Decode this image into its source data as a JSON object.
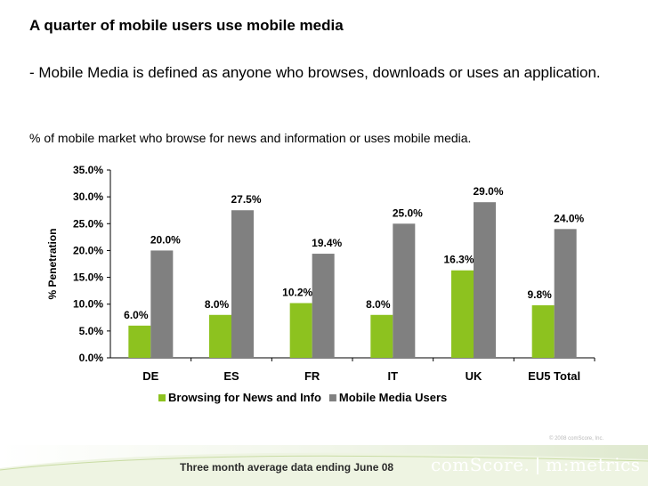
{
  "header": {
    "title": "A quarter of mobile users use mobile media",
    "subtitle": "- Mobile Media is defined as anyone who browses, downloads or uses an application.",
    "caption": "% of mobile market who browse for news and information or uses mobile media."
  },
  "chart_data": {
    "type": "bar",
    "categories": [
      "DE",
      "ES",
      "FR",
      "IT",
      "UK",
      "EU5 Total"
    ],
    "series": [
      {
        "name": "Browsing for News and Info",
        "color": "#8dc21f",
        "values": [
          6.0,
          8.0,
          10.2,
          8.0,
          16.3,
          9.8
        ],
        "labels": [
          "6.0%",
          "8.0%",
          "10.2%",
          "8.0%",
          "16.3%",
          "9.8%"
        ]
      },
      {
        "name": "Mobile Media Users",
        "color": "#808080",
        "values": [
          20.0,
          27.5,
          19.4,
          25.0,
          29.0,
          24.0
        ],
        "labels": [
          "20.0%",
          "27.5%",
          "19.4%",
          "25.0%",
          "29.0%",
          "24.0%"
        ]
      }
    ],
    "ylabel": "% Penetration",
    "xlabel": "",
    "ylim": [
      0,
      35
    ],
    "yticks": [
      0,
      5,
      10,
      15,
      20,
      25,
      30,
      35
    ],
    "ytick_labels": [
      "0.0%",
      "5.0%",
      "10.0%",
      "15.0%",
      "20.0%",
      "25.0%",
      "30.0%",
      "35.0%"
    ],
    "legend": "bottom",
    "grid": false
  },
  "footer": {
    "note": "Three month average data ending June 08",
    "copyright": "© 2008 comScore, Inc.",
    "brand_left": "comScore.",
    "brand_sep": "|",
    "brand_right": "m:metrics"
  }
}
